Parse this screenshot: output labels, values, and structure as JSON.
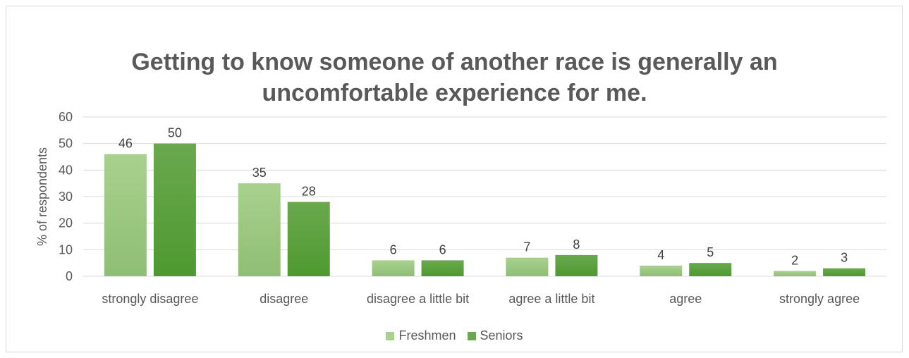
{
  "chart_data": {
    "type": "bar",
    "title_lines": [
      "Getting to know someone of another race is generally an",
      "uncomfortable experience for me."
    ],
    "ylabel": "% of respondents",
    "xlabel": "",
    "ylim": [
      0,
      60
    ],
    "yticks": [
      0,
      10,
      20,
      30,
      40,
      50,
      60
    ],
    "categories": [
      "strongly disagree",
      "disagree",
      "disagree a little bit",
      "agree a little bit",
      "agree",
      "strongly agree"
    ],
    "series": [
      {
        "name": "Freshmen",
        "values": [
          46,
          35,
          6,
          7,
          4,
          2
        ],
        "color_top": "#a9d18e",
        "color_bottom": "#8fbe75"
      },
      {
        "name": "Seniors",
        "values": [
          50,
          28,
          6,
          8,
          5,
          3
        ],
        "color_top": "#6aa84f",
        "color_bottom": "#4e9a2f"
      }
    ],
    "grid": true,
    "legend_position": "bottom",
    "colors": {
      "axis_text": "#595959",
      "grid": "#d9d9d9",
      "data_label": "#404040"
    }
  }
}
